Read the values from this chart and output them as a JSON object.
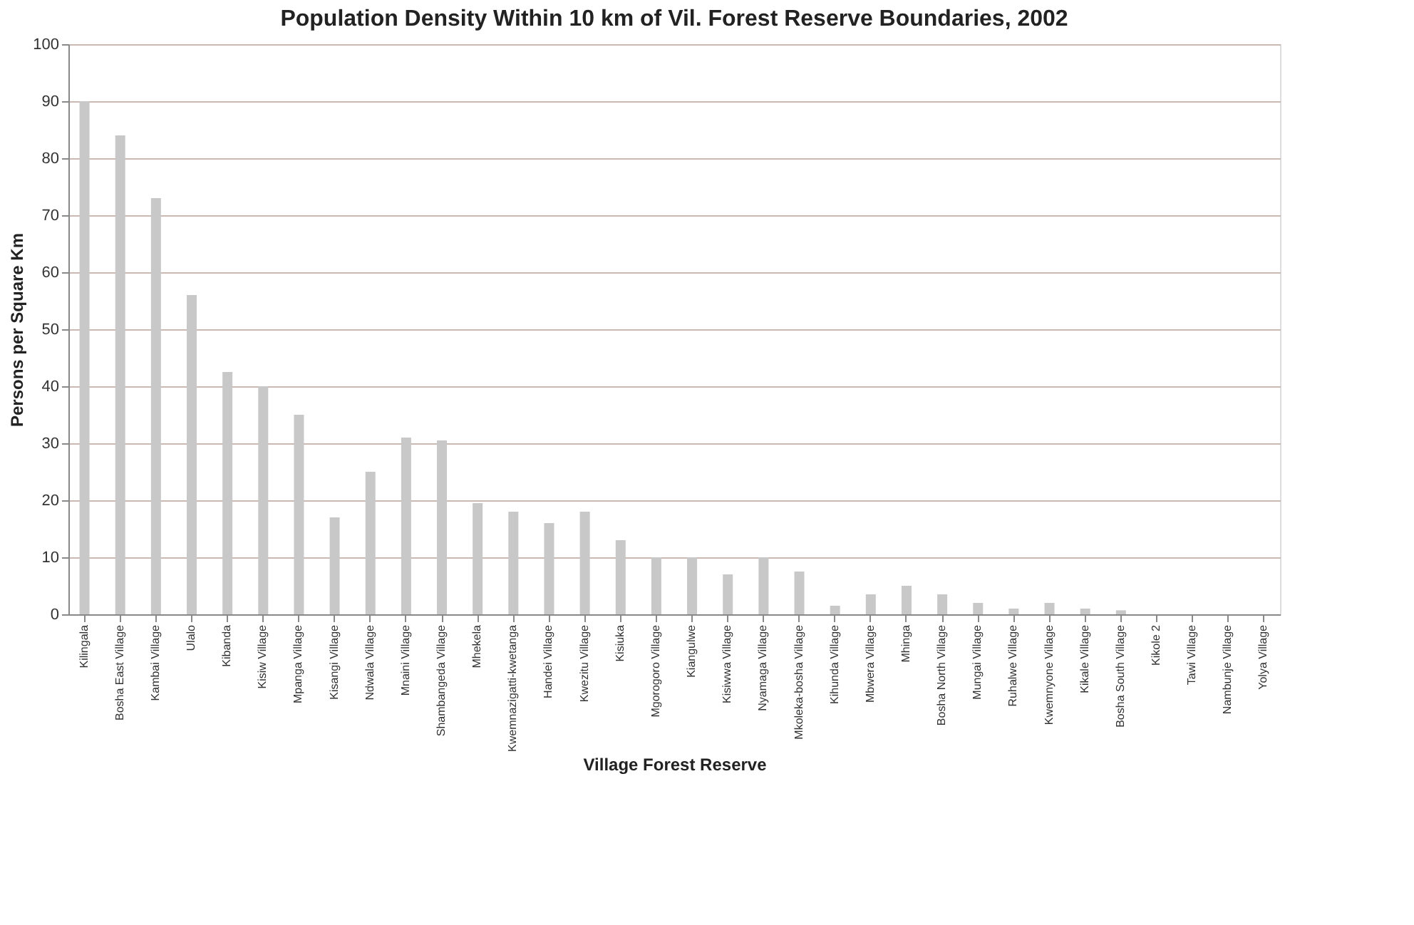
{
  "chart_data": {
    "type": "bar",
    "title": "Population Density Within 10 km of Vil. Forest  Reserve Boundaries, 2002",
    "xlabel": "Village Forest Reserve",
    "ylabel": "Persons per Square Km",
    "categories": [
      "Kilingala",
      "Bosha East Village",
      "Kambai Village",
      "Ulalo",
      "Kibanda",
      "Kisiw Village",
      "Mpanga Village",
      "Kisangi Village",
      "Ndwala Village",
      "Mnaini Village",
      "Shambangeda Village",
      "Mhekela",
      "Kwemnazigatti-kwetanga",
      "Handei Village",
      "Kwezitu Village",
      "Kisiuka",
      "Mgorogoro Village",
      "Kiangulwe",
      "Kisiwwa Village",
      "Nyamaga Village",
      "Mkoleka-bosha Village",
      "Kihunda Village",
      "Mbwera Village",
      "Mhinga",
      "Bosha North Village",
      "Mungai Village",
      "Ruhalwe Village",
      "Kwemnyone Village",
      "Kikale Village",
      "Bosha South Village",
      "Kikole 2",
      "Tawi Village",
      "Nambunje Village",
      "Yolya Village"
    ],
    "values": [
      90,
      84,
      73,
      56,
      42.5,
      40,
      35,
      17,
      25,
      31,
      30.5,
      19.5,
      18,
      16,
      18,
      13,
      10,
      10,
      7,
      10,
      7.5,
      1.5,
      3.5,
      5,
      3.5,
      2,
      1,
      2,
      1,
      0.7,
      null,
      null,
      null,
      null
    ],
    "color": "#c8c8c8",
    "ylim": [
      0,
      100
    ],
    "yticks": [
      0,
      10,
      20,
      30,
      40,
      50,
      60,
      70,
      80,
      90,
      100
    ],
    "grid": "y"
  }
}
